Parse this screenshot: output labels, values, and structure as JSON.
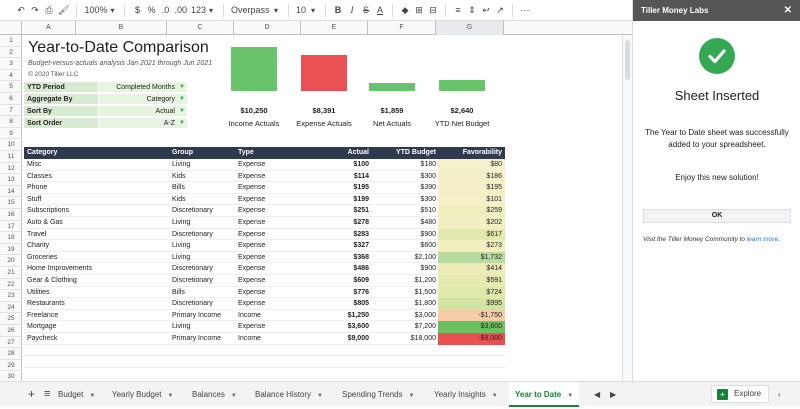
{
  "toolbar": {
    "zoom": "100%",
    "currency": "$",
    "percent": "%",
    "dec_decrease": ".0",
    "dec_increase": ".00",
    "format_more": "123",
    "font": "Overpass",
    "font_size": "10"
  },
  "columns": [
    "A",
    "B",
    "C",
    "D",
    "E",
    "F",
    "G"
  ],
  "rows": [
    "1",
    "2",
    "3",
    "4",
    "5",
    "6",
    "7",
    "8",
    "9",
    "10",
    "11",
    "12",
    "13",
    "14",
    "15",
    "16",
    "17",
    "18",
    "19",
    "20",
    "21",
    "22",
    "23",
    "24",
    "25",
    "26",
    "27",
    "28",
    "29",
    "30"
  ],
  "sheet": {
    "title": "Year-to-Date Comparison",
    "subtitle": "Budget-versus-actuals analysis Jan 2021 through Jun 2021",
    "copyright": "© 2020 Tiller LLC",
    "controls": [
      {
        "label": "YTD Period",
        "value": "Completed Months"
      },
      {
        "label": "Aggregate By",
        "value": "Category"
      },
      {
        "label": "Sort By",
        "value": "Actual"
      },
      {
        "label": "Sort Order",
        "value": "A-Z"
      }
    ]
  },
  "chart_data": {
    "type": "bar",
    "categories": [
      "Income Actuals",
      "Expense Actuals",
      "Net Actuals",
      "YTD Net Budget"
    ],
    "values": [
      10250,
      8391,
      1859,
      2640
    ],
    "value_labels": [
      "$10,250",
      "$8,391",
      "$1,859",
      "$2,640"
    ],
    "colors": [
      "#69c36a",
      "#ea5155",
      "#69c36a",
      "#69c36a"
    ]
  },
  "table": {
    "headers": [
      "Category",
      "Group",
      "Type",
      "Actual",
      "YTD Budget",
      "Favorability"
    ],
    "rows": [
      {
        "category": "Misc",
        "group": "Living",
        "type": "Expense",
        "actual": "$100",
        "budget": "$180",
        "fav": "$80",
        "fav_color": "#f6f1cd"
      },
      {
        "category": "Classes",
        "group": "Kids",
        "type": "Expense",
        "actual": "$114",
        "budget": "$300",
        "fav": "$186",
        "fav_color": "#f4efc7"
      },
      {
        "category": "Phone",
        "group": "Bills",
        "type": "Expense",
        "actual": "$195",
        "budget": "$390",
        "fav": "$195",
        "fav_color": "#f4efc7"
      },
      {
        "category": "Stuff",
        "group": "Kids",
        "type": "Expense",
        "actual": "$199",
        "budget": "$300",
        "fav": "$101",
        "fav_color": "#f5f0ca"
      },
      {
        "category": "Subscriptions",
        "group": "Discretionary",
        "type": "Expense",
        "actual": "$251",
        "budget": "$510",
        "fav": "$259",
        "fav_color": "#f1eec0"
      },
      {
        "category": "Auto & Gas",
        "group": "Living",
        "type": "Expense",
        "actual": "$278",
        "budget": "$480",
        "fav": "$202",
        "fav_color": "#f3efc4"
      },
      {
        "category": "Travel",
        "group": "Discretionary",
        "type": "Expense",
        "actual": "$283",
        "budget": "$900",
        "fav": "$617",
        "fav_color": "#e3e9ad"
      },
      {
        "category": "Charity",
        "group": "Living",
        "type": "Expense",
        "actual": "$327",
        "budget": "$600",
        "fav": "$273",
        "fav_color": "#f1eec0"
      },
      {
        "category": "Groceries",
        "group": "Living",
        "type": "Expense",
        "actual": "$368",
        "budget": "$2,100",
        "fav": "$1,732",
        "fav_color": "#b7dba0"
      },
      {
        "category": "Home Improvements",
        "group": "Discretionary",
        "type": "Expense",
        "actual": "$486",
        "budget": "$900",
        "fav": "$414",
        "fav_color": "#ecebb8"
      },
      {
        "category": "Gear & Clothing",
        "group": "Discretionary",
        "type": "Expense",
        "actual": "$609",
        "budget": "$1,200",
        "fav": "$591",
        "fav_color": "#e5eaaf"
      },
      {
        "category": "Utilities",
        "group": "Bills",
        "type": "Expense",
        "actual": "$776",
        "budget": "$1,500",
        "fav": "$724",
        "fav_color": "#e0e8aa"
      },
      {
        "category": "Restaurants",
        "group": "Discretionary",
        "type": "Expense",
        "actual": "$805",
        "budget": "$1,800",
        "fav": "$995",
        "fav_color": "#d4e3a4"
      },
      {
        "category": "Freelance",
        "group": "Primary Income",
        "type": "Income",
        "actual": "$1,250",
        "budget": "$3,000",
        "fav": "-$1,750",
        "fav_color": "#f6cba8"
      },
      {
        "category": "Mortgage",
        "group": "Living",
        "type": "Expense",
        "actual": "$3,600",
        "budget": "$7,200",
        "fav": "$3,600",
        "fav_color": "#6bbf5f"
      },
      {
        "category": "Paycheck",
        "group": "Primary Income",
        "type": "Income",
        "actual": "$9,000",
        "budget": "$18,000",
        "fav": "-$9,000",
        "fav_color": "#e8514f"
      }
    ]
  },
  "tabs": [
    "Budget",
    "Yearly Budget",
    "Balances",
    "Balance History",
    "Spending Trends",
    "Yearly Insights",
    "Year to Date"
  ],
  "explore_label": "Explore",
  "sidebar": {
    "header": "Tiller Money Labs",
    "title": "Sheet Inserted",
    "message": "The Year to Date sheet was successfully added to your spreadsheet.",
    "enjoy": "Enjoy this new solution!",
    "ok": "OK",
    "footer_prefix": "Visit the Tiller Money Community to ",
    "footer_link": "learn more",
    "footer_suffix": "."
  }
}
